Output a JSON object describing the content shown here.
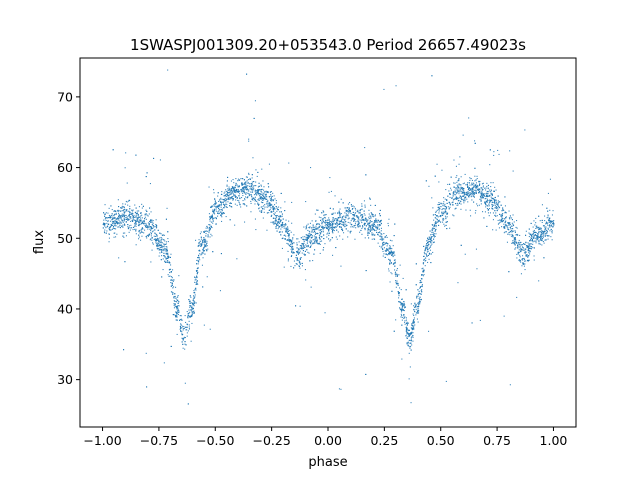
{
  "chart_data": {
    "type": "scatter",
    "title": "1SWASPJ001309.20+053543.0 Period 26657.49023s",
    "xlabel": "phase",
    "ylabel": "flux",
    "xlim": [
      -1.1,
      1.1
    ],
    "ylim": [
      23.3,
      75.5
    ],
    "xticks": [
      -1.0,
      -0.75,
      -0.5,
      -0.25,
      0.0,
      0.25,
      0.5,
      0.75,
      1.0
    ],
    "xtick_labels": [
      "−1.00",
      "−0.75",
      "−0.50",
      "−0.25",
      "0.00",
      "0.25",
      "0.50",
      "0.75",
      "1.00"
    ],
    "yticks": [
      30,
      40,
      50,
      60,
      70
    ],
    "ytick_labels": [
      "30",
      "40",
      "50",
      "60",
      "70"
    ],
    "grid": false,
    "series": [
      {
        "color": "#1f77b4",
        "description_of_trend": "folded eclipsing-binary light curve repeated over two cycles",
        "curve_points": [
          {
            "x": -1.0,
            "y": 52.0
          },
          {
            "x": -0.9,
            "y": 53.0
          },
          {
            "x": -0.8,
            "y": 52.0
          },
          {
            "x": -0.72,
            "y": 48.0
          },
          {
            "x": -0.67,
            "y": 40.0
          },
          {
            "x": -0.64,
            "y": 35.8
          },
          {
            "x": -0.61,
            "y": 40.0
          },
          {
            "x": -0.56,
            "y": 49.0
          },
          {
            "x": -0.5,
            "y": 54.0
          },
          {
            "x": -0.42,
            "y": 56.5
          },
          {
            "x": -0.35,
            "y": 57.0
          },
          {
            "x": -0.28,
            "y": 55.5
          },
          {
            "x": -0.2,
            "y": 52.0
          },
          {
            "x": -0.14,
            "y": 47.5
          },
          {
            "x": -0.08,
            "y": 50.5
          },
          {
            "x": 0.0,
            "y": 52.0
          },
          {
            "x": 0.1,
            "y": 53.0
          },
          {
            "x": 0.2,
            "y": 52.0
          },
          {
            "x": 0.28,
            "y": 48.0
          },
          {
            "x": 0.33,
            "y": 40.0
          },
          {
            "x": 0.36,
            "y": 35.8
          },
          {
            "x": 0.39,
            "y": 40.0
          },
          {
            "x": 0.44,
            "y": 49.0
          },
          {
            "x": 0.5,
            "y": 54.0
          },
          {
            "x": 0.58,
            "y": 56.5
          },
          {
            "x": 0.65,
            "y": 57.0
          },
          {
            "x": 0.72,
            "y": 55.5
          },
          {
            "x": 0.8,
            "y": 52.0
          },
          {
            "x": 0.86,
            "y": 47.5
          },
          {
            "x": 0.92,
            "y": 50.5
          },
          {
            "x": 1.0,
            "y": 52.0
          }
        ]
      }
    ]
  }
}
